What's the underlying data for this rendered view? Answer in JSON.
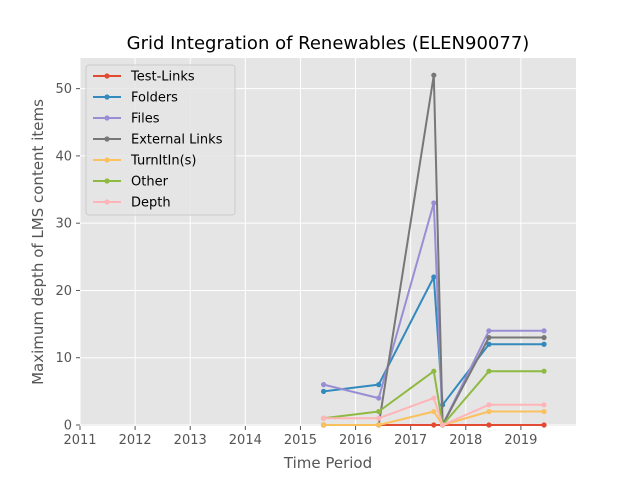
{
  "chart_data": {
    "type": "line",
    "title": "Grid Integration of Renewables (ELEN90077)",
    "xlabel": "Time Period",
    "ylabel": "Maximum depth of LMS content items",
    "xlim": [
      2011,
      2020
    ],
    "ylim": [
      0,
      55
    ],
    "xticks": [
      2011,
      2012,
      2013,
      2014,
      2015,
      2016,
      2017,
      2018,
      2019
    ],
    "yticks": [
      0,
      10,
      20,
      30,
      40,
      50
    ],
    "grid": true,
    "legend_position": "top-left",
    "x": [
      2015.42,
      2016.42,
      2017.42,
      2017.58,
      2018.42,
      2019.42
    ],
    "series": [
      {
        "name": "Test-Links",
        "color": "#E24A33",
        "values": [
          0,
          0,
          0,
          0,
          0,
          0
        ]
      },
      {
        "name": "Folders",
        "color": "#348ABD",
        "values": [
          5,
          6,
          22,
          3,
          12,
          12
        ]
      },
      {
        "name": "Files",
        "color": "#988ED5",
        "values": [
          6,
          4,
          33,
          0,
          14,
          14
        ]
      },
      {
        "name": "External Links",
        "color": "#777777",
        "values": [
          0,
          0,
          52,
          0,
          13,
          13
        ]
      },
      {
        "name": "TurnItIn(s)",
        "color": "#FBC15E",
        "values": [
          0,
          0,
          2,
          0,
          2,
          2
        ]
      },
      {
        "name": "Other",
        "color": "#8EBA42",
        "values": [
          1,
          2,
          8,
          0,
          8,
          8
        ]
      },
      {
        "name": "Depth",
        "color": "#FFB5B8",
        "values": [
          1,
          1,
          4,
          0,
          3,
          3
        ]
      }
    ]
  }
}
